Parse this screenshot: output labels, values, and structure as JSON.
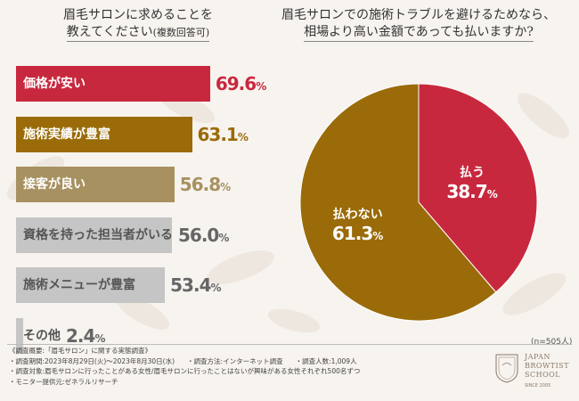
{
  "left_question": {
    "line1": "眉毛サロンに求めることを",
    "line2": "教えてください",
    "line2_note": "(複数回答可)"
  },
  "right_question": {
    "line1": "眉毛サロンでの施術トラブルを避けるためなら、",
    "line2": "相場より高い金額であっても払いますか?"
  },
  "chart_data": [
    {
      "type": "bar",
      "orientation": "horizontal",
      "title": "眉毛サロンに求めることを教えてください(複数回答可)",
      "categories": [
        "価格が安い",
        "施術実績が豊富",
        "接客が良い",
        "資格を持った担当者がいる",
        "施術メニューが豊富",
        "その他"
      ],
      "values": [
        69.6,
        63.1,
        56.8,
        56.0,
        53.4,
        2.4
      ],
      "value_text": [
        "69.6",
        "63.1",
        "56.8",
        "56.0",
        "53.4",
        "2.4"
      ],
      "unit": "%",
      "colors": [
        "#c8283e",
        "#9a6b08",
        "#a89160",
        "#c5c5c5",
        "#c5c5c5",
        "#c5c5c5"
      ],
      "value_colors": [
        "#c8283e",
        "#9a6b08",
        "#a89160",
        "#666666",
        "#666666",
        "#666666"
      ],
      "label_dark": [
        false,
        false,
        false,
        true,
        true,
        true
      ],
      "xlim": [
        0,
        100
      ]
    },
    {
      "type": "pie",
      "title": "眉毛サロンでの施術トラブルを避けるためなら、相場より高い金額であっても払いますか?",
      "slices": [
        {
          "label": "払う",
          "value": 38.7,
          "value_text": "38.7",
          "color": "#c8283e"
        },
        {
          "label": "払わない",
          "value": 61.3,
          "value_text": "61.3",
          "color": "#9a6b08"
        }
      ],
      "unit": "%",
      "start": "12 o'clock, clockwise"
    }
  ],
  "sample_note": "(n=505人)",
  "survey": {
    "title": "《調査概要:「眉毛サロン」に関する実態調査》",
    "period": "・調査期間:2023年8月29日(火)〜2023年8月30日(水)",
    "method": "・調査方法:インターネット調査",
    "people": "・調査人数:1,009人",
    "target": "・調査対象:眉毛サロンに行ったことがある女性/眉毛サロンに行ったことはないが興味がある女性それぞれ500名ずつ",
    "provider": "・モニター提供元:ゼネラルリサーチ"
  },
  "logo": {
    "emblem_text": "JAPAN BROWTIST SCHOOL",
    "line1": "JAPAN",
    "line2": "BROWTIST",
    "line3": "SCHOOL",
    "since": "SINCE 2005"
  }
}
